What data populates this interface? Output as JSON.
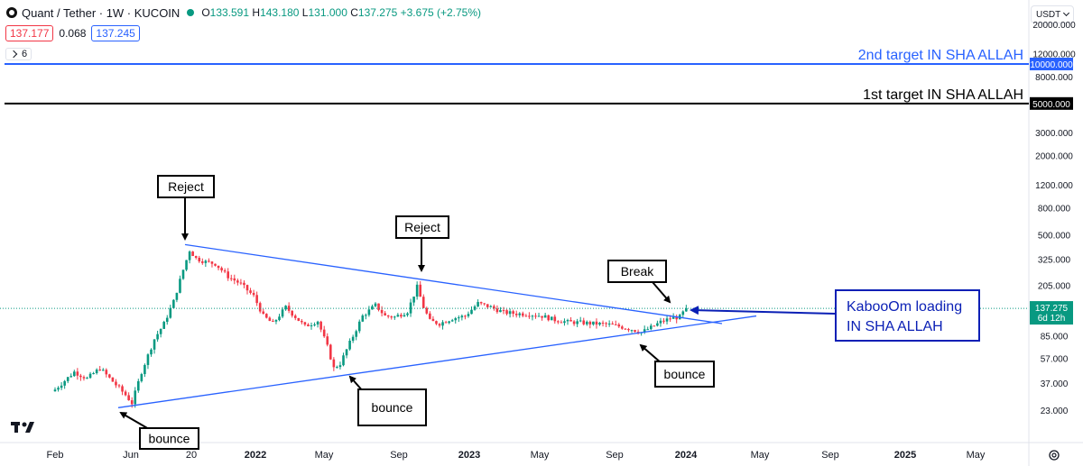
{
  "header": {
    "symbol": "Quant / Tether · 1W · KUCOIN",
    "ohlc": {
      "o_label": "O",
      "o": "133.591",
      "h_label": "H",
      "h": "143.180",
      "l_label": "L",
      "l": "131.000",
      "c_label": "C",
      "c": "137.275",
      "change": "+3.675 (+2.75%)"
    },
    "bid": "137.177",
    "spread": "0.068",
    "ask": "137.245",
    "indicator_count": "6",
    "currency": "USDT",
    "up_color": "#089981",
    "down_color": "#f23645"
  },
  "chart_data": {
    "type": "candlestick",
    "scale": "log",
    "ylim": [
      18,
      26000
    ],
    "x_axis_labels": [
      "Feb",
      "Jun",
      "20",
      "2022",
      "May",
      "Sep",
      "2023",
      "May",
      "Sep",
      "2024",
      "May",
      "Sep",
      "2025",
      "May"
    ],
    "y_axis_labels": [
      "20000.000",
      "12000.000",
      "8000.000",
      "3000.000",
      "2000.000",
      "1200.000",
      "800.000",
      "500.000",
      "325.000",
      "205.000",
      "85.000",
      "57.000",
      "37.000",
      "23.000"
    ],
    "current_price": {
      "label": "137.275",
      "countdown": "6d 12h",
      "value": 137.275
    },
    "target_lines": [
      {
        "name": "2nd target",
        "label": "2nd target IN SHA ALLAH",
        "price_label": "10000.000",
        "value": 10000,
        "color": "#2962ff"
      },
      {
        "name": "1st target",
        "label": "1st target IN SHA ALLAH",
        "price_label": "5000.000",
        "value": 5000,
        "color": "#000000"
      }
    ],
    "annotations": [
      {
        "name": "reject-1",
        "text": "Reject"
      },
      {
        "name": "reject-2",
        "text": "Reject"
      },
      {
        "name": "break",
        "text": "Break"
      },
      {
        "name": "bounce-1",
        "text": "bounce"
      },
      {
        "name": "bounce-2",
        "text": "bounce"
      },
      {
        "name": "bounce-3",
        "text": "bounce"
      },
      {
        "name": "kaboom",
        "text": "KabooOm loading\nIN SHA ALLAH"
      }
    ],
    "trendlines": [
      {
        "name": "upper-triangle-line",
        "from_price": 420,
        "to_price": 105,
        "color": "#2962ff"
      },
      {
        "name": "lower-triangle-line",
        "from_price": 24,
        "to_price": 120,
        "color": "#2962ff"
      }
    ],
    "price_path": [
      [
        0,
        33
      ],
      [
        6,
        45
      ],
      [
        10,
        40
      ],
      [
        14,
        48
      ],
      [
        18,
        38
      ],
      [
        22,
        30
      ],
      [
        24,
        26
      ],
      [
        27,
        45
      ],
      [
        31,
        80
      ],
      [
        34,
        105
      ],
      [
        37,
        155
      ],
      [
        40,
        270
      ],
      [
        42,
        380
      ],
      [
        44,
        330
      ],
      [
        47,
        310
      ],
      [
        50,
        300
      ],
      [
        54,
        240
      ],
      [
        58,
        210
      ],
      [
        62,
        170
      ],
      [
        65,
        120
      ],
      [
        68,
        105
      ],
      [
        72,
        140
      ],
      [
        75,
        118
      ],
      [
        78,
        100
      ],
      [
        82,
        110
      ],
      [
        85,
        70
      ],
      [
        87,
        48
      ],
      [
        89,
        52
      ],
      [
        92,
        75
      ],
      [
        96,
        120
      ],
      [
        100,
        145
      ],
      [
        103,
        120
      ],
      [
        106,
        118
      ],
      [
        110,
        130
      ],
      [
        113,
        200
      ],
      [
        115,
        140
      ],
      [
        117,
        110
      ],
      [
        120,
        105
      ],
      [
        124,
        115
      ],
      [
        128,
        120
      ],
      [
        132,
        150
      ],
      [
        136,
        140
      ],
      [
        140,
        128
      ],
      [
        144,
        125
      ],
      [
        148,
        124
      ],
      [
        152,
        120
      ],
      [
        156,
        112
      ],
      [
        160,
        108
      ],
      [
        164,
        107
      ],
      [
        168,
        105
      ],
      [
        172,
        104
      ],
      [
        176,
        100
      ],
      [
        180,
        95
      ],
      [
        183,
        90
      ],
      [
        186,
        98
      ],
      [
        189,
        108
      ],
      [
        192,
        115
      ],
      [
        195,
        118
      ],
      [
        197,
        137
      ]
    ]
  },
  "logo": "tradingview-logo",
  "settings_icon": "gear-icon"
}
